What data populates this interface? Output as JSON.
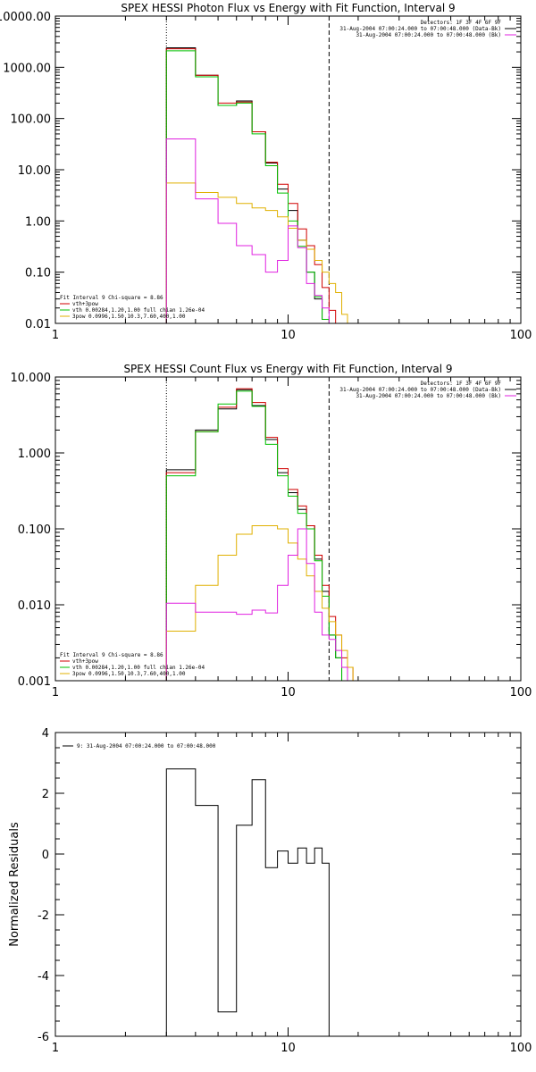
{
  "chart_data": [
    {
      "type": "line",
      "title": "SPEX HESSI Photon Flux vs Energy with Fit Function, Interval 9",
      "xscale": "log",
      "yscale": "log",
      "xlim": [
        1,
        100
      ],
      "ylim": [
        0.01,
        10000
      ],
      "x_tick_labels": [
        "1",
        "10",
        "100"
      ],
      "y_tick_labels": [
        "0.01",
        "0.10",
        "1.00",
        "10.00",
        "100.00",
        "1000.00",
        "10000.00"
      ],
      "vlines": [
        {
          "x": 3.0,
          "style": "dotted"
        },
        {
          "x": 15.0,
          "style": "dashed"
        }
      ],
      "legend_topright": [
        {
          "text": "Detectors: 1F 3F 4F 6F 9F",
          "color": "#000000"
        },
        {
          "text": "31-Aug-2004 07:00:24.000 to 07:00:48.000 (Data-Bk)",
          "color": "#000000"
        },
        {
          "text": "31-Aug-2004 07:00:24.000 to 07:00:48.000 (Bk)",
          "color": "#e020e0"
        }
      ],
      "legend_bottomleft": [
        {
          "text": "Fit Interval 9   Chi-square = 8.86",
          "color": "#000000"
        },
        {
          "text": "vth+3pow",
          "color": "#d00000"
        },
        {
          "text": "vth 0.00284,1.20,1.00  full chian 1.26e-04",
          "color": "#00c000"
        },
        {
          "text": "3pow 0.0996,1.50,10.3,7.60,400,1.00",
          "color": "#e0b000"
        }
      ],
      "bin_edges": [
        3,
        4,
        5,
        6,
        7,
        8,
        9,
        10,
        11,
        12,
        13,
        14,
        15,
        16,
        17,
        18
      ],
      "series": [
        {
          "color": "#000000",
          "values": [
            2400,
            700,
            180,
            220,
            55,
            13.5,
            4.2,
            1.6,
            0.42,
            0.1,
            0.03,
            0.012,
            0.01,
            0.01,
            0.01
          ]
        },
        {
          "color": "#d00000",
          "values": [
            2300,
            700,
            200,
            210,
            55,
            14,
            5.2,
            2.2,
            0.7,
            0.33,
            0.14,
            0.05,
            0.018,
            0.01,
            0.01
          ]
        },
        {
          "color": "#00c000",
          "values": [
            2100,
            650,
            180,
            200,
            50,
            12,
            3.5,
            1.0,
            0.32,
            0.1,
            0.033,
            0.012,
            0.01,
            0.01,
            0.01
          ]
        },
        {
          "color": "#e0b000",
          "values": [
            5.5,
            3.6,
            2.9,
            2.2,
            1.8,
            1.6,
            1.2,
            0.72,
            0.42,
            0.28,
            0.17,
            0.1,
            0.06,
            0.04,
            0.015
          ]
        },
        {
          "color": "#e020e0",
          "values": [
            40,
            2.7,
            0.9,
            0.33,
            0.22,
            0.1,
            0.17,
            0.8,
            0.3,
            0.06,
            0.035,
            0.02,
            0.01,
            0.01,
            0.01
          ]
        }
      ]
    },
    {
      "type": "line",
      "title": "SPEX HESSI Count Flux vs Energy with Fit Function, Interval 9",
      "xscale": "log",
      "yscale": "log",
      "xlim": [
        1,
        100
      ],
      "ylim": [
        0.001,
        10
      ],
      "x_tick_labels": [
        "1",
        "10",
        "100"
      ],
      "y_tick_labels": [
        "0.001",
        "0.010",
        "0.100",
        "1.000",
        "10.000"
      ],
      "vlines": [
        {
          "x": 3.0,
          "style": "dotted"
        },
        {
          "x": 15.0,
          "style": "dashed"
        }
      ],
      "legend_topright": [
        {
          "text": "Detectors: 1F 3F 4F 6F 9F",
          "color": "#000000"
        },
        {
          "text": "31-Aug-2004 07:00:24.000 to 07:00:48.000 (Data-Bk)",
          "color": "#000000"
        },
        {
          "text": "31-Aug-2004 07:00:24.000 to 07:00:48.000 (Bk)",
          "color": "#e020e0"
        }
      ],
      "legend_bottomleft": [
        {
          "text": "Fit Interval 9   Chi-square = 8.86",
          "color": "#000000"
        },
        {
          "text": "vth+3pow",
          "color": "#d00000"
        },
        {
          "text": "vth 0.00284,1.20,1.00  full chian 1.26e-04",
          "color": "#00c000"
        },
        {
          "text": "3pow 0.0996,1.50,10.3,7.60,400,1.00",
          "color": "#e0b000"
        }
      ],
      "bin_edges": [
        3,
        4,
        5,
        6,
        7,
        8,
        9,
        10,
        11,
        12,
        13,
        14,
        15,
        16,
        17,
        18,
        19,
        20
      ],
      "series": [
        {
          "color": "#000000",
          "values": [
            0.6,
            2.0,
            3.8,
            6.8,
            4.2,
            1.5,
            0.55,
            0.3,
            0.18,
            0.11,
            0.04,
            0.015,
            0.004,
            0.002,
            0.001,
            0.001,
            0.001
          ]
        },
        {
          "color": "#d00000",
          "values": [
            0.55,
            1.9,
            4.0,
            7.0,
            4.6,
            1.6,
            0.62,
            0.33,
            0.2,
            0.11,
            0.045,
            0.018,
            0.007,
            0.004,
            0.002,
            0.0015,
            0.001
          ]
        },
        {
          "color": "#00c000",
          "values": [
            0.5,
            1.9,
            4.4,
            6.5,
            4.1,
            1.3,
            0.5,
            0.27,
            0.16,
            0.1,
            0.038,
            0.013,
            0.004,
            0.002,
            0.001,
            0.001,
            0.001
          ]
        },
        {
          "color": "#e0b000",
          "values": [
            0.0045,
            0.018,
            0.045,
            0.085,
            0.11,
            0.11,
            0.1,
            0.065,
            0.04,
            0.024,
            0.015,
            0.009,
            0.006,
            0.004,
            0.0025,
            0.0015,
            0.001
          ]
        },
        {
          "color": "#e020e0",
          "values": [
            0.0105,
            0.008,
            0.008,
            0.0075,
            0.0085,
            0.0078,
            0.018,
            0.045,
            0.1,
            0.035,
            0.008,
            0.004,
            0.0035,
            0.0025,
            0.0015,
            0.001,
            0.001
          ]
        }
      ]
    },
    {
      "type": "line",
      "title": "",
      "xscale": "log",
      "yscale": "linear",
      "xlim": [
        1,
        100
      ],
      "ylim": [
        -6,
        4
      ],
      "ylabel": "Normalized Residuals",
      "x_tick_labels": [
        "1",
        "10",
        "100"
      ],
      "y_tick_labels": [
        "-6",
        "-4",
        "-2",
        "0",
        "2",
        "4"
      ],
      "legend_topleft": [
        {
          "text": "9: 31-Aug-2004 07:00:24.000 to 07:00:48.000",
          "color": "#000000"
        }
      ],
      "bin_edges": [
        3,
        4,
        5,
        6,
        7,
        8,
        9,
        10,
        11,
        12,
        13,
        14,
        15
      ],
      "series": [
        {
          "color": "#000000",
          "values": [
            2.8,
            1.6,
            -5.2,
            0.95,
            2.45,
            -0.45,
            0.1,
            -0.3,
            0.2,
            -0.3,
            0.2,
            -0.3
          ]
        }
      ]
    }
  ]
}
